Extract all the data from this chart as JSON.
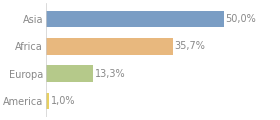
{
  "categories": [
    "Asia",
    "Africa",
    "Europa",
    "America"
  ],
  "values": [
    50.0,
    35.7,
    13.3,
    1.0
  ],
  "labels": [
    "50,0%",
    "35,7%",
    "13,3%",
    "1,0%"
  ],
  "bar_colors": [
    "#7a9dc4",
    "#e8b87e",
    "#b5c98a",
    "#e8d060"
  ],
  "background_color": "#ffffff",
  "xlim_max": 65,
  "bar_height": 0.6,
  "label_fontsize": 7,
  "tick_fontsize": 7,
  "label_color": "#888888",
  "tick_color": "#888888"
}
